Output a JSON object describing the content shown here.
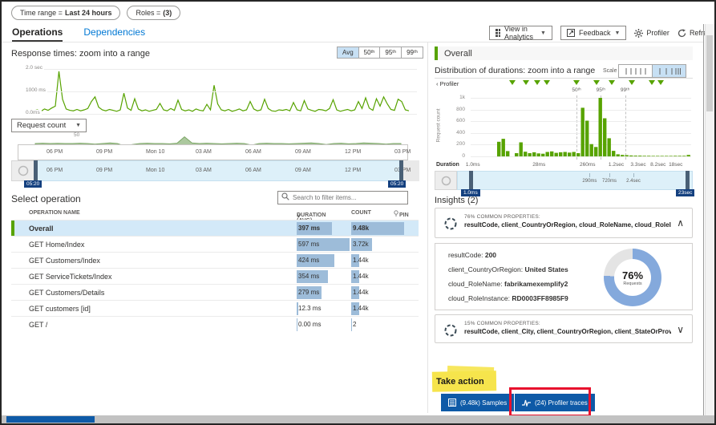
{
  "filters": [
    {
      "label": "Time range =",
      "value": "Last 24 hours"
    },
    {
      "label": "Roles =",
      "value": "(3)"
    }
  ],
  "tabs": [
    {
      "label": "Operations"
    },
    {
      "label": "Dependencies"
    }
  ],
  "toolbar": {
    "analytics": "View in Analytics",
    "feedback": "Feedback",
    "profiler": "Profiler",
    "refresh": "Refresh"
  },
  "left": {
    "response_title": "Response times: zoom into a range",
    "agg_buttons": [
      "Avg",
      "50ᵗʰ",
      "95ᵗʰ",
      "99ᵗʰ"
    ],
    "agg_selected": 0,
    "y_ticks": [
      "2.0 sec",
      "1000 ms",
      "0.0ms"
    ],
    "request_dropdown": "Request count",
    "request_ymax": "50",
    "timeline_ticks": [
      "06 PM",
      "09 PM",
      "Mon 10",
      "03 AM",
      "06 AM",
      "09 AM",
      "12 PM",
      "03 PM"
    ],
    "brush_start_badge": "05:20",
    "brush_end_badge": "05:20",
    "select_title": "Select operation",
    "search_placeholder": "Search to filter items...",
    "columns": {
      "name": "OPERATION NAME",
      "duration": "DURATION (AVG)",
      "count": "COUNT",
      "pin": "PIN"
    },
    "rows": [
      {
        "name": "Overall",
        "duration": "397 ms",
        "count": "9.48k",
        "dur_w": 44,
        "count_w": 66,
        "selected": true
      },
      {
        "name": "GET Home/Index",
        "duration": "597 ms",
        "count": "3.72k",
        "dur_w": 66,
        "count_w": 26,
        "selected": false
      },
      {
        "name": "GET Customers/Index",
        "duration": "424 ms",
        "count": "1.44k",
        "dur_w": 47,
        "count_w": 10,
        "selected": false
      },
      {
        "name": "GET ServiceTickets/Index",
        "duration": "354 ms",
        "count": "1.44k",
        "dur_w": 39,
        "count_w": 10,
        "selected": false
      },
      {
        "name": "GET Customers/Details",
        "duration": "279 ms",
        "count": "1.44k",
        "dur_w": 31,
        "count_w": 10,
        "selected": false
      },
      {
        "name": "GET customers [id]",
        "duration": "12.3 ms",
        "count": "1.44k",
        "dur_w": 2,
        "count_w": 10,
        "selected": false
      },
      {
        "name": "GET /",
        "duration": "0.00 ms",
        "count": "2",
        "dur_w": 1,
        "count_w": 1,
        "selected": false
      }
    ]
  },
  "right": {
    "overall": "Overall",
    "dist_title": "Distribution of durations: zoom into a range",
    "scale_label": "Scale",
    "profiler_label": "‹ Profiler",
    "y_axis_label": "Request count",
    "y_ticks": [
      "1k",
      "800",
      "600",
      "400",
      "200",
      "0"
    ],
    "duration_label": "Duration",
    "duration_ticks": [
      {
        "label": "1.0ms",
        "pos": 0.01
      },
      {
        "label": "28ms",
        "pos": 0.31
      },
      {
        "label": "260ms",
        "pos": 0.53
      },
      {
        "label": "1.2sec",
        "pos": 0.66
      },
      {
        "label": "3.3sec",
        "pos": 0.76
      },
      {
        "label": "8.2sec",
        "pos": 0.85
      },
      {
        "label": "18sec",
        "pos": 0.93
      }
    ],
    "brush_ticks": [
      {
        "label": "290ms",
        "pos": 0.54
      },
      {
        "label": "720ms",
        "pos": 0.63
      },
      {
        "label": "2.4sec",
        "pos": 0.74
      }
    ],
    "brush_start_badge": "1.0ms",
    "brush_end_badge": "23sec",
    "insights_title": "Insights (2)",
    "cards": [
      {
        "pct": "76% COMMON PROPERTIES:",
        "props": "resultCode, client_CountryOrRegion, cloud_RoleName, cloud_RoleInstance",
        "expanded": true
      },
      {
        "pct": "15% COMMON PROPERTIES:",
        "props": "resultCode, client_City, client_CountryOrRegion, client_StateOrProvince, perf...",
        "expanded": false
      }
    ],
    "details": [
      {
        "key": "resultCode:",
        "value": "200"
      },
      {
        "key": "client_CountryOrRegion:",
        "value": "United States"
      },
      {
        "key": "cloud_RoleName:",
        "value": "fabrikamexemplify2"
      },
      {
        "key": "cloud_RoleInstance:",
        "value": "RD0003FF8985F9"
      }
    ],
    "donut": {
      "pct": "76%",
      "label": "Requests",
      "value": 76
    },
    "take_action": "Take action",
    "samples_btn": "(9.48k) Samples",
    "traces_btn": "(24) Profiler traces"
  },
  "chart_data": [
    {
      "type": "line",
      "title": "Response times: zoom into a range",
      "y_ticks": [
        "2.0 sec",
        "1000 ms",
        "0.0ms"
      ],
      "unit": "percent_of_2.0sec",
      "values": [
        10,
        12,
        9,
        14,
        11,
        16,
        20,
        95,
        35,
        14,
        11,
        10,
        13,
        10,
        12,
        15,
        30,
        40,
        18,
        12,
        10,
        13,
        11,
        9,
        12,
        48,
        16,
        11,
        36,
        14,
        10,
        12,
        9,
        11,
        13,
        26,
        12,
        10,
        15,
        11,
        33,
        13,
        10,
        12,
        9,
        14,
        11,
        10,
        24,
        12,
        65,
        25,
        12,
        10,
        13,
        9,
        11,
        14,
        10,
        12,
        30,
        14,
        10,
        12,
        35,
        15,
        10,
        9,
        12,
        11,
        13,
        10,
        28,
        12,
        10,
        32,
        14,
        11,
        9,
        13,
        12,
        10,
        15,
        34,
        12,
        9,
        11,
        13,
        10,
        12,
        30,
        15,
        38,
        16,
        11,
        36,
        20,
        40,
        25,
        13,
        11,
        35,
        30,
        12,
        10
      ]
    },
    {
      "type": "area",
      "title": "Request count",
      "y_max": 50,
      "values": [
        0.5,
        0.52,
        0.5,
        0.51,
        0.5,
        0.5,
        0.52,
        0.5,
        0.46,
        0.5,
        0.54,
        0.5,
        0.34,
        0.44,
        0.5,
        0.52,
        0.5,
        0.5,
        0.48,
        0.52,
        0.92,
        0.54,
        0.5,
        0.52,
        0.5,
        0.48,
        0.5,
        0.52,
        0.5,
        0.4,
        0.5,
        0.52,
        0.5,
        0.5,
        0.48,
        0.5,
        0.52,
        0.54,
        0.5,
        0.44,
        0.5,
        0.52,
        0.48,
        0.5,
        0.54,
        0.52,
        0.5,
        0.46,
        0.5,
        0.5
      ]
    },
    {
      "type": "bar",
      "title": "Distribution of durations",
      "x_ticks": [
        "1.0ms",
        "28ms",
        "260ms",
        "1.2sec",
        "3.3sec",
        "8.2sec",
        "18sec"
      ],
      "y_ticks": [
        "1k",
        "800",
        "600",
        "400",
        "200",
        "0"
      ],
      "ylim": [
        0,
        1000
      ],
      "values": [
        0,
        0,
        0,
        0,
        0,
        0,
        250,
        300,
        90,
        0,
        55,
        240,
        80,
        55,
        70,
        50,
        45,
        75,
        85,
        60,
        70,
        75,
        65,
        75,
        55,
        830,
        610,
        210,
        160,
        1000,
        650,
        310,
        95,
        35,
        25,
        20,
        15,
        12,
        12,
        10,
        10,
        8,
        8,
        8,
        8,
        8,
        10,
        10,
        10,
        25
      ],
      "profiler_markers": [
        0.19,
        0.25,
        0.3,
        0.345,
        0.48,
        0.57,
        0.64,
        0.73,
        0.82,
        0.86
      ],
      "percentiles": [
        {
          "label": "50ᵗʰ",
          "pos": 0.48
        },
        {
          "label": "95ᵗʰ",
          "pos": 0.59
        },
        {
          "label": "99ᵗʰ",
          "pos": 0.7
        }
      ]
    }
  ],
  "colors": {
    "green": "#57a300",
    "accent_blue": "#0078d4",
    "table_bar_blue": "#9dbcd9",
    "badge_blue": "#14407f",
    "button_blue": "#0e5aa7",
    "annotation_red": "#e8112d",
    "highlight_yellow": "#f6e44c",
    "donut_blue": "#84a9dc",
    "selected_row": "#d3e9f8"
  }
}
